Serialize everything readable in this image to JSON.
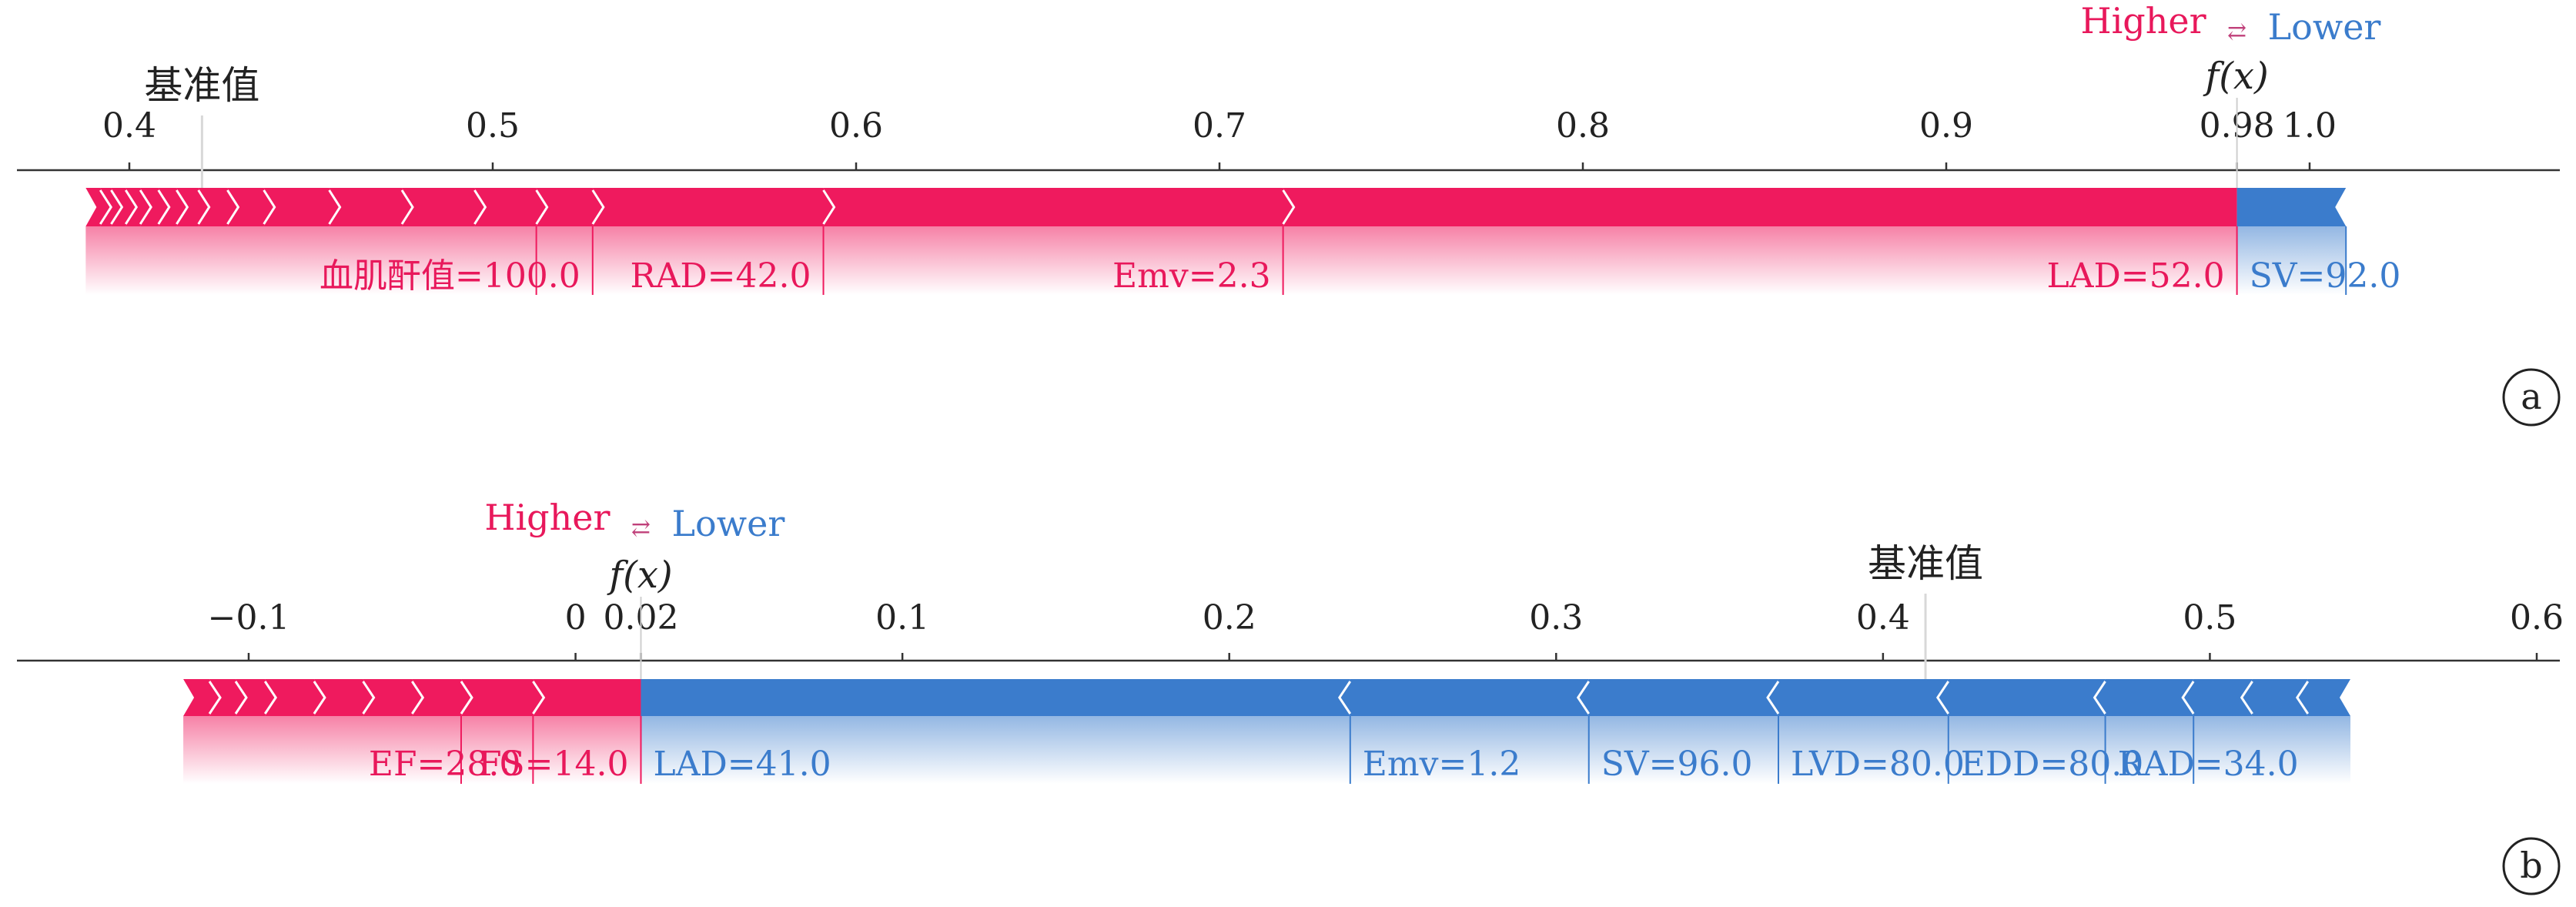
{
  "colors": {
    "positive": "#ef1a5e",
    "negative": "#3b7ccc",
    "positive_text": "#e8185b",
    "negative_text": "#3b7ccc"
  },
  "chart_data": [
    {
      "type": "force",
      "panel": "a",
      "higher_label": "Higher",
      "lower_label": "Lower",
      "fx_label": "f(x)",
      "base_label": "基准值",
      "xlim": [
        0.385,
        1.075
      ],
      "ticks": [
        {
          "value": 0.4,
          "label": "0.4"
        },
        {
          "value": 0.5,
          "label": "0.5"
        },
        {
          "value": 0.6,
          "label": "0.6"
        },
        {
          "value": 0.7,
          "label": "0.7"
        },
        {
          "value": 0.8,
          "label": "0.8"
        },
        {
          "value": 0.9,
          "label": "0.9"
        },
        {
          "value": 0.98,
          "label": "0.98"
        },
        {
          "value": 1.0,
          "label": "1.0"
        }
      ],
      "base_value": 0.42,
      "fx": 0.98,
      "positive": [
        {
          "label": "LAD=52.0",
          "start": 0.7175,
          "end": 0.98
        },
        {
          "label": "Emv=2.3",
          "start": 0.591,
          "end": 0.7175
        },
        {
          "label": "RAD=42.0",
          "start": 0.5275,
          "end": 0.591
        },
        {
          "label": "血肌酐值=100.0",
          "start": 0.512,
          "end": 0.5275
        },
        {
          "label": "",
          "start": 0.495,
          "end": 0.512
        },
        {
          "label": "",
          "start": 0.475,
          "end": 0.495
        },
        {
          "label": "",
          "start": 0.455,
          "end": 0.475
        },
        {
          "label": "",
          "start": 0.437,
          "end": 0.455
        },
        {
          "label": "",
          "start": 0.427,
          "end": 0.437
        },
        {
          "label": "",
          "start": 0.419,
          "end": 0.427
        },
        {
          "label": "",
          "start": 0.413,
          "end": 0.419
        },
        {
          "label": "",
          "start": 0.408,
          "end": 0.413
        },
        {
          "label": "",
          "start": 0.403,
          "end": 0.408
        },
        {
          "label": "",
          "start": 0.399,
          "end": 0.403
        },
        {
          "label": "",
          "start": 0.395,
          "end": 0.399
        },
        {
          "label": "",
          "start": 0.392,
          "end": 0.395
        },
        {
          "label": "",
          "start": 0.388,
          "end": 0.392
        }
      ],
      "negative": [
        {
          "label": "SV=92.0",
          "start": 0.98,
          "end": 1.01
        }
      ]
    },
    {
      "type": "force",
      "panel": "b",
      "higher_label": "Higher",
      "lower_label": "Lower",
      "fx_label": "f(x)",
      "base_label": "基准值",
      "xlim": [
        -0.135,
        0.605
      ],
      "ticks": [
        {
          "value": -0.1,
          "label": "−0.1"
        },
        {
          "value": 0.0,
          "label": "0"
        },
        {
          "value": 0.02,
          "label": "0.02"
        },
        {
          "value": 0.1,
          "label": "0.1"
        },
        {
          "value": 0.2,
          "label": "0.2"
        },
        {
          "value": 0.3,
          "label": "0.3"
        },
        {
          "value": 0.4,
          "label": "0.4"
        },
        {
          "value": 0.5,
          "label": "0.5"
        },
        {
          "value": 0.6,
          "label": "0.6"
        }
      ],
      "base_value": 0.413,
      "fx": 0.02,
      "positive": [
        {
          "label": "FS=14.0",
          "start": -0.013,
          "end": 0.02
        },
        {
          "label": "EF=28.0",
          "start": -0.035,
          "end": -0.013
        },
        {
          "label": "",
          "start": -0.05,
          "end": -0.035
        },
        {
          "label": "",
          "start": -0.065,
          "end": -0.05
        },
        {
          "label": "",
          "start": -0.08,
          "end": -0.065
        },
        {
          "label": "",
          "start": -0.095,
          "end": -0.08
        },
        {
          "label": "",
          "start": -0.104,
          "end": -0.095
        },
        {
          "label": "",
          "start": -0.112,
          "end": -0.104
        },
        {
          "label": "",
          "start": -0.12,
          "end": -0.112
        }
      ],
      "negative": [
        {
          "label": "LAD=41.0",
          "start": 0.02,
          "end": 0.237
        },
        {
          "label": "Emv=1.2",
          "start": 0.237,
          "end": 0.31
        },
        {
          "label": "SV=96.0",
          "start": 0.31,
          "end": 0.368
        },
        {
          "label": "LVD=80.0",
          "start": 0.368,
          "end": 0.42
        },
        {
          "label": "EDD=80.0",
          "start": 0.42,
          "end": 0.468
        },
        {
          "label": "RAD=34.0",
          "start": 0.468,
          "end": 0.495
        },
        {
          "label": "",
          "start": 0.495,
          "end": 0.513
        },
        {
          "label": "",
          "start": 0.513,
          "end": 0.53
        },
        {
          "label": "",
          "start": 0.53,
          "end": 0.543
        }
      ]
    }
  ]
}
